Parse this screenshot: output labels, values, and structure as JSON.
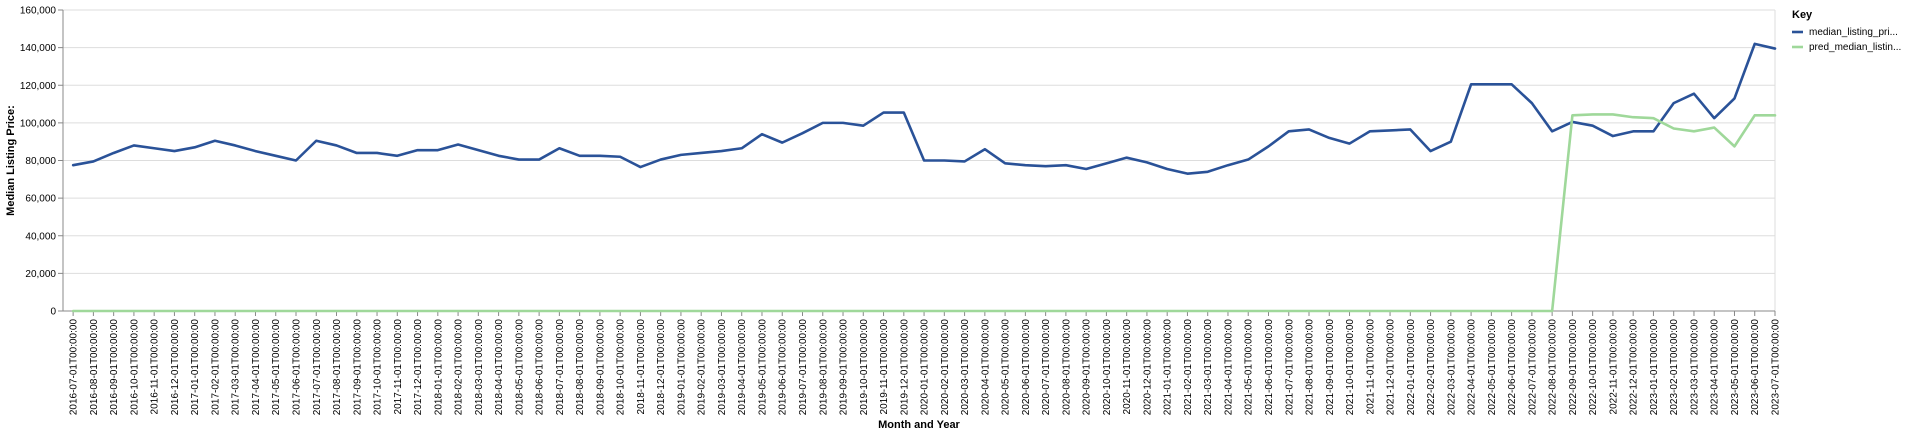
{
  "chart_data": {
    "type": "line",
    "title": "",
    "xlabel": "Month and Year",
    "ylabel": "Median Listing Price:",
    "ylim": [
      0,
      160000
    ],
    "yticks": [
      0,
      20000,
      40000,
      60000,
      80000,
      100000,
      120000,
      140000,
      160000
    ],
    "ytick_labels": [
      "0",
      "20,000",
      "40,000",
      "60,000",
      "80,000",
      "100,000",
      "120,000",
      "140,000",
      "160,000"
    ],
    "grid": true,
    "legend": {
      "title": "Key",
      "position": "right"
    },
    "categories": [
      "2016-07-01T00:00:00",
      "2016-08-01T00:00:00",
      "2016-09-01T00:00:00",
      "2016-10-01T00:00:00",
      "2016-11-01T00:00:00",
      "2016-12-01T00:00:00",
      "2017-01-01T00:00:00",
      "2017-02-01T00:00:00",
      "2017-03-01T00:00:00",
      "2017-04-01T00:00:00",
      "2017-05-01T00:00:00",
      "2017-06-01T00:00:00",
      "2017-07-01T00:00:00",
      "2017-08-01T00:00:00",
      "2017-09-01T00:00:00",
      "2017-10-01T00:00:00",
      "2017-11-01T00:00:00",
      "2017-12-01T00:00:00",
      "2018-01-01T00:00:00",
      "2018-02-01T00:00:00",
      "2018-03-01T00:00:00",
      "2018-04-01T00:00:00",
      "2018-05-01T00:00:00",
      "2018-06-01T00:00:00",
      "2018-07-01T00:00:00",
      "2018-08-01T00:00:00",
      "2018-09-01T00:00:00",
      "2018-10-01T00:00:00",
      "2018-11-01T00:00:00",
      "2018-12-01T00:00:00",
      "2019-01-01T00:00:00",
      "2019-02-01T00:00:00",
      "2019-03-01T00:00:00",
      "2019-04-01T00:00:00",
      "2019-05-01T00:00:00",
      "2019-06-01T00:00:00",
      "2019-07-01T00:00:00",
      "2019-08-01T00:00:00",
      "2019-09-01T00:00:00",
      "2019-10-01T00:00:00",
      "2019-11-01T00:00:00",
      "2019-12-01T00:00:00",
      "2020-01-01T00:00:00",
      "2020-02-01T00:00:00",
      "2020-03-01T00:00:00",
      "2020-04-01T00:00:00",
      "2020-05-01T00:00:00",
      "2020-06-01T00:00:00",
      "2020-07-01T00:00:00",
      "2020-08-01T00:00:00",
      "2020-09-01T00:00:00",
      "2020-10-01T00:00:00",
      "2020-11-01T00:00:00",
      "2020-12-01T00:00:00",
      "2021-01-01T00:00:00",
      "2021-02-01T00:00:00",
      "2021-03-01T00:00:00",
      "2021-04-01T00:00:00",
      "2021-05-01T00:00:00",
      "2021-06-01T00:00:00",
      "2021-07-01T00:00:00",
      "2021-08-01T00:00:00",
      "2021-09-01T00:00:00",
      "2021-10-01T00:00:00",
      "2021-11-01T00:00:00",
      "2021-12-01T00:00:00",
      "2022-01-01T00:00:00",
      "2022-02-01T00:00:00",
      "2022-03-01T00:00:00",
      "2022-04-01T00:00:00",
      "2022-05-01T00:00:00",
      "2022-06-01T00:00:00",
      "2022-07-01T00:00:00",
      "2022-08-01T00:00:00",
      "2022-09-01T00:00:00",
      "2022-10-01T00:00:00",
      "2022-11-01T00:00:00",
      "2022-12-01T00:00:00",
      "2023-01-01T00:00:00",
      "2023-02-01T00:00:00",
      "2023-03-01T00:00:00",
      "2023-04-01T00:00:00",
      "2023-05-01T00:00:00",
      "2023-06-01T00:00:00",
      "2023-07-01T00:00:00"
    ],
    "series": [
      {
        "name": "median_listing_pri...",
        "color": "#2a5298",
        "values": [
          77500,
          79500,
          84000,
          88000,
          86500,
          85000,
          87000,
          90500,
          88000,
          85000,
          82500,
          80000,
          90500,
          88000,
          84000,
          84000,
          82500,
          85500,
          85500,
          88500,
          85500,
          82500,
          80500,
          80500,
          86500,
          82500,
          82500,
          82000,
          76500,
          80500,
          83000,
          84000,
          85000,
          86500,
          94000,
          89500,
          94500,
          100000,
          100000,
          98500,
          105500,
          105500,
          80000,
          80000,
          79500,
          86000,
          78500,
          77500,
          77000,
          77500,
          75500,
          78500,
          81500,
          79000,
          75500,
          73000,
          74000,
          77500,
          80500,
          87500,
          95500,
          96500,
          92000,
          89000,
          95500,
          96000,
          96500,
          85000,
          90000,
          120500,
          120500,
          120500,
          110500,
          95500,
          100500,
          98500,
          93000,
          95500,
          95500,
          110500,
          115500,
          102500,
          113000,
          142000,
          139500
        ]
      },
      {
        "name": "pred_median_listin...",
        "color": "#9fd89a",
        "values": [
          0,
          0,
          0,
          0,
          0,
          0,
          0,
          0,
          0,
          0,
          0,
          0,
          0,
          0,
          0,
          0,
          0,
          0,
          0,
          0,
          0,
          0,
          0,
          0,
          0,
          0,
          0,
          0,
          0,
          0,
          0,
          0,
          0,
          0,
          0,
          0,
          0,
          0,
          0,
          0,
          0,
          0,
          0,
          0,
          0,
          0,
          0,
          0,
          0,
          0,
          0,
          0,
          0,
          0,
          0,
          0,
          0,
          0,
          0,
          0,
          0,
          0,
          0,
          0,
          0,
          0,
          0,
          0,
          0,
          0,
          0,
          0,
          0,
          0,
          104000,
          104500,
          104500,
          103000,
          102500,
          97000,
          95500,
          97500,
          87500,
          104000,
          104000
        ]
      }
    ]
  }
}
